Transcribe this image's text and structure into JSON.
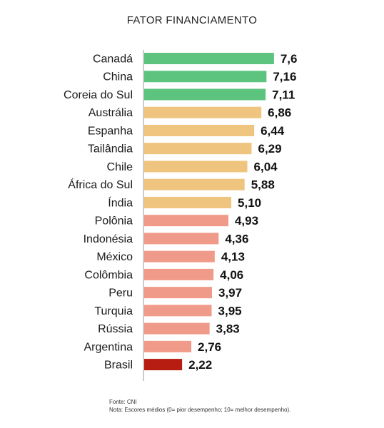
{
  "chart_data": {
    "type": "bar",
    "orientation": "horizontal",
    "title": "FATOR FINANCIAMENTO",
    "categories": [
      "Canadá",
      "China",
      "Coreia do Sul",
      "Austrália",
      "Espanha",
      "Tailândia",
      "Chile",
      "África do Sul",
      "Índia",
      "Polônia",
      "Indonésia",
      "México",
      "Colômbia",
      "Peru",
      "Turquia",
      "Rússia",
      "Argentina",
      "Brasil"
    ],
    "values": [
      7.6,
      7.16,
      7.11,
      6.86,
      6.44,
      6.29,
      6.04,
      5.88,
      5.1,
      4.93,
      4.36,
      4.13,
      4.06,
      3.97,
      3.95,
      3.83,
      2.76,
      2.22
    ],
    "value_labels": [
      "7,6",
      "7,16",
      "7,11",
      "6,86",
      "6,44",
      "6,29",
      "6,04",
      "5,88",
      "5,10",
      "4,93",
      "4,36",
      "4,13",
      "4,06",
      "3,97",
      "3,95",
      "3,83",
      "2,76",
      "2,22"
    ],
    "bar_colors": [
      "#5dc47f",
      "#5dc47f",
      "#5dc47f",
      "#efc47e",
      "#efc47e",
      "#efc47e",
      "#efc47e",
      "#efc47e",
      "#efc47e",
      "#f09a8a",
      "#f09a8a",
      "#f09a8a",
      "#f09a8a",
      "#f09a8a",
      "#f09a8a",
      "#f09a8a",
      "#f09a8a",
      "#b81d12"
    ],
    "xlim": [
      0,
      8.4
    ],
    "grid": false,
    "legend": "none"
  },
  "footnote": {
    "source": "Fonte: CNI",
    "note": "Nota: Escores médios (0= pior desempenho; 10= melhor desempenho)."
  },
  "colors": {
    "axis": "#9a9a9a"
  }
}
